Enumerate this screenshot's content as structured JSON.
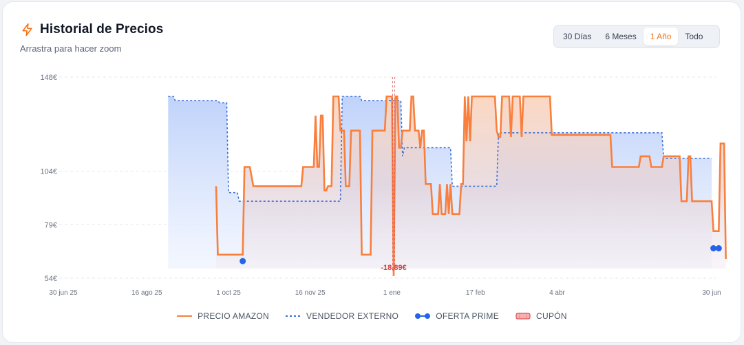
{
  "header": {
    "title": "Historial de Precios",
    "subtitle": "Arrastra para hacer zoom",
    "icon": "lightning-icon"
  },
  "range_tabs": [
    {
      "label": "30 Días",
      "active": false
    },
    {
      "label": "6 Meses",
      "active": false
    },
    {
      "label": "1 Año",
      "active": true
    },
    {
      "label": "Todo",
      "active": false
    }
  ],
  "colors": {
    "amazon": "#f97f3d",
    "amazon_fill": "#fdd5bd",
    "external": "#3b6fd9",
    "external_fill": "#c7d8fb",
    "prime": "#2563eb",
    "coupon": "#e05252",
    "grid": "#e5e7eb",
    "axis_text": "#6b7280"
  },
  "chart_data": {
    "type": "line",
    "ylim": [
      54,
      148
    ],
    "y_ticks": [
      "148€",
      "104€",
      "79€",
      "54€"
    ],
    "y_tick_values": [
      148,
      104,
      79,
      54
    ],
    "x_range": [
      "2025-06-30",
      "2026-06-30"
    ],
    "x_ticks": [
      "30 jun 25",
      "16 ago 25",
      "1 oct 25",
      "16 nov 25",
      "1 ene",
      "17 feb",
      "4 abr",
      "30 jun"
    ],
    "x_tick_dates": [
      "2025-06-30",
      "2025-08-16",
      "2025-10-01",
      "2025-11-16",
      "2026-01-01",
      "2026-02-17",
      "2026-04-04",
      "2026-06-30"
    ],
    "series": [
      {
        "name": "PRECIO AMAZON",
        "style": "solid",
        "points": [
          [
            "2025-09-24",
            97
          ],
          [
            "2025-09-25",
            65
          ],
          [
            "2025-09-28",
            65
          ],
          [
            "2025-10-04",
            65
          ],
          [
            "2025-10-09",
            65
          ],
          [
            "2025-10-10",
            106
          ],
          [
            "2025-10-13",
            106
          ],
          [
            "2025-10-15",
            97
          ],
          [
            "2025-11-11",
            97
          ],
          [
            "2025-11-12",
            106
          ],
          [
            "2025-11-18",
            106
          ],
          [
            "2025-11-19",
            130
          ],
          [
            "2025-11-20",
            106
          ],
          [
            "2025-11-21",
            106
          ],
          [
            "2025-11-22",
            130
          ],
          [
            "2025-11-23",
            130
          ],
          [
            "2025-11-24",
            95
          ],
          [
            "2025-11-25",
            95
          ],
          [
            "2025-11-26",
            97
          ],
          [
            "2025-11-28",
            97
          ],
          [
            "2025-11-29",
            139
          ],
          [
            "2025-12-02",
            139
          ],
          [
            "2025-12-03",
            123
          ],
          [
            "2025-12-05",
            123
          ],
          [
            "2025-12-06",
            97
          ],
          [
            "2025-12-08",
            97
          ],
          [
            "2025-12-09",
            123
          ],
          [
            "2025-12-14",
            123
          ],
          [
            "2025-12-15",
            65
          ],
          [
            "2025-12-20",
            65
          ],
          [
            "2025-12-21",
            123
          ],
          [
            "2025-12-28",
            123
          ],
          [
            "2025-12-29",
            139
          ],
          [
            "2026-01-01",
            139
          ],
          [
            "2026-01-02",
            55
          ],
          [
            "2026-01-03",
            139
          ],
          [
            "2026-01-04",
            139
          ],
          [
            "2026-01-05",
            115
          ],
          [
            "2026-01-06",
            115
          ],
          [
            "2026-01-07",
            123
          ],
          [
            "2026-01-11",
            123
          ],
          [
            "2026-01-12",
            139
          ],
          [
            "2026-01-13",
            139
          ],
          [
            "2026-01-14",
            123
          ],
          [
            "2026-01-16",
            123
          ],
          [
            "2026-01-17",
            115
          ],
          [
            "2026-01-18",
            123
          ],
          [
            "2026-01-19",
            123
          ],
          [
            "2026-01-20",
            98
          ],
          [
            "2026-01-23",
            98
          ],
          [
            "2026-01-24",
            84
          ],
          [
            "2026-01-27",
            84
          ],
          [
            "2026-01-28",
            98
          ],
          [
            "2026-01-29",
            84
          ],
          [
            "2026-01-31",
            84
          ],
          [
            "2026-02-01",
            98
          ],
          [
            "2026-02-02",
            84
          ],
          [
            "2026-02-03",
            98
          ],
          [
            "2026-02-04",
            84
          ],
          [
            "2026-02-08",
            84
          ],
          [
            "2026-02-09",
            98
          ],
          [
            "2026-02-10",
            98
          ],
          [
            "2026-02-11",
            139
          ],
          [
            "2026-02-12",
            118
          ],
          [
            "2026-02-13",
            139
          ],
          [
            "2026-02-14",
            118
          ],
          [
            "2026-02-15",
            139
          ],
          [
            "2026-02-28",
            139
          ],
          [
            "2026-03-01",
            123
          ],
          [
            "2026-03-02",
            120
          ],
          [
            "2026-03-03",
            120
          ],
          [
            "2026-03-04",
            139
          ],
          [
            "2026-03-08",
            139
          ],
          [
            "2026-03-09",
            120
          ],
          [
            "2026-03-10",
            139
          ],
          [
            "2026-03-14",
            139
          ],
          [
            "2026-03-15",
            120
          ],
          [
            "2026-03-16",
            139
          ],
          [
            "2026-03-31",
            139
          ],
          [
            "2026-04-01",
            121
          ],
          [
            "2026-05-04",
            121
          ],
          [
            "2026-05-05",
            106
          ],
          [
            "2026-05-20",
            106
          ],
          [
            "2026-05-21",
            111
          ],
          [
            "2026-05-26",
            111
          ],
          [
            "2026-05-27",
            106
          ],
          [
            "2026-06-02",
            106
          ],
          [
            "2026-06-03",
            111
          ],
          [
            "2026-06-12",
            111
          ],
          [
            "2026-06-13",
            90
          ],
          [
            "2026-06-16",
            90
          ],
          [
            "2026-06-17",
            111
          ],
          [
            "2026-06-18",
            111
          ],
          [
            "2026-06-19",
            90
          ],
          [
            "2026-06-30",
            90
          ],
          [
            "2026-07-01",
            76
          ],
          [
            "2026-07-04",
            76
          ],
          [
            "2026-07-05",
            117
          ],
          [
            "2026-07-07",
            117
          ],
          [
            "2026-07-08",
            63
          ]
        ]
      },
      {
        "name": "VENDEDOR EXTERNO",
        "style": "dashed",
        "points": [
          [
            "2025-08-28",
            139
          ],
          [
            "2025-08-31",
            139
          ],
          [
            "2025-09-01",
            137
          ],
          [
            "2025-09-25",
            137
          ],
          [
            "2025-09-26",
            136
          ],
          [
            "2025-09-30",
            136
          ],
          [
            "2025-10-01",
            94
          ],
          [
            "2025-10-06",
            94
          ],
          [
            "2025-10-07",
            90
          ],
          [
            "2025-12-03",
            90
          ],
          [
            "2025-12-04",
            139
          ],
          [
            "2025-12-14",
            139
          ],
          [
            "2025-12-15",
            137
          ],
          [
            "2026-01-06",
            137
          ],
          [
            "2026-01-07",
            111
          ],
          [
            "2026-01-08",
            115
          ],
          [
            "2026-02-03",
            115
          ],
          [
            "2026-02-04",
            97
          ],
          [
            "2026-03-01",
            97
          ],
          [
            "2026-03-02",
            122
          ],
          [
            "2026-06-02",
            122
          ],
          [
            "2026-06-03",
            110
          ],
          [
            "2026-06-30",
            110
          ]
        ]
      }
    ],
    "prime_offers": [
      [
        "2025-10-09",
        62
      ],
      [
        "2026-07-01",
        68
      ],
      [
        "2026-07-04",
        68
      ]
    ],
    "coupon": {
      "label": "-18,89€",
      "date": "2026-01-02"
    }
  },
  "legend": [
    {
      "label": "PRECIO AMAZON",
      "kind": "solid-line"
    },
    {
      "label": "VENDEDOR EXTERNO",
      "kind": "dashed-line"
    },
    {
      "label": "OFERTA PRIME",
      "kind": "dot-line"
    },
    {
      "label": "CUPÓN",
      "kind": "coupon-ticket"
    }
  ]
}
